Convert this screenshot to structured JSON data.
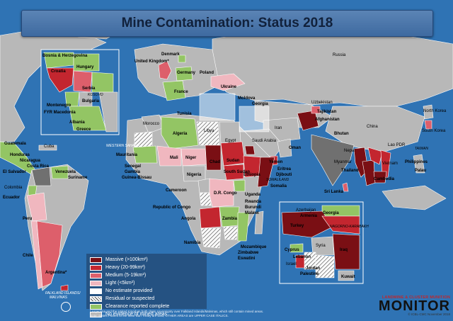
{
  "title": "Mine Contamination: Status 2018",
  "colors": {
    "ocean": "#2f73b4",
    "massive": "#7a0f14",
    "heavy": "#c3262f",
    "medium": "#dd5f6b",
    "light": "#f0b7bf",
    "no_estimate": "#ffffff",
    "residual": "hatch",
    "clearance_complete": "#93c564",
    "no_evidence": "#b8b8b8",
    "not_bound_gray": "#707070"
  },
  "legend": [
    {
      "label": "Massive (>100km²)",
      "color": "#7a0f14"
    },
    {
      "label": "Heavy (20-99km²)",
      "color": "#c3262f"
    },
    {
      "label": "Medium (5-19km²)",
      "color": "#dd5f6b"
    },
    {
      "label": "Light (<5km²)",
      "color": "#f0b7bf"
    },
    {
      "label": "No estimate provided",
      "color": "#ffffff"
    },
    {
      "label": "Residual or suspected",
      "color": "hatch"
    },
    {
      "label": "Clearance reported complete",
      "color": "#93c564"
    },
    {
      "label": "No evidence of mined areas",
      "color": "#b8b8b8"
    }
  ],
  "labels": {
    "russia": "Russia",
    "denmark": "Denmark",
    "united_kingdom": "United Kingdom*",
    "germany": "Germany",
    "poland": "Poland",
    "france": "France",
    "ukraine": "Ukraine",
    "moldova": "Moldova",
    "georgia_top": "Georgia",
    "uzbekistan": "Uzbekistan",
    "tajikistan": "Tajikistan",
    "afghanistan": "Afghanistan",
    "iran": "Iran",
    "north_korea": "North Korea",
    "south_korea": "South Korea",
    "china": "China",
    "bhutan": "Bhutan",
    "nepal": "Nepal",
    "lao_pdr": "Lao PDR",
    "taiwan": "TAIWAN",
    "philippines": "Philippines",
    "palau": "Palau",
    "myanmar": "Myanmar",
    "thailand": "Thailand",
    "vietnam": "Vietnam",
    "cambodia": "Cambodia",
    "sri_lanka": "Sri Lanka",
    "oman": "Oman",
    "saudi_arabia": "Saudi Arabia",
    "yemen": "Yemen",
    "eritrea": "Eritrea",
    "djibouti": "Djibouti",
    "somaliland": "SOMALILAND",
    "somalia": "Somalia",
    "ethiopia": "Ethiopia",
    "sudan": "Sudan",
    "south_sudan": "South Sudan",
    "egypt": "Egypt",
    "libya": "Libya",
    "tunisia": "Tunisia",
    "morocco": "Morocco",
    "algeria": "Algeria",
    "western_sahara": "WESTERN SAHARA",
    "mauritania": "Mauritania",
    "mali": "Mali",
    "niger": "Niger",
    "chad": "Chad",
    "nigeria": "Nigeria",
    "senegal": "Senegal",
    "gambia": "Gambia",
    "guinea_bissau": "Guinea-Bissau",
    "cameroon": "Cameroon",
    "republic_of_congo": "Republic of Congo",
    "dr_congo": "D.R. Congo",
    "uganda": "Uganda",
    "rwanda": "Rwanda",
    "burundi": "Burundi",
    "malawi": "Malawi",
    "angola": "Angola",
    "zambia": "Zambia",
    "namibia": "Namibia",
    "mozambique": "Mozambique",
    "zimbabwe": "Zimbabwe",
    "eswatini": "Eswatini",
    "cuba": "Cuba",
    "guatemala": "Guatemala",
    "honduras": "Honduras",
    "nicaragua": "Nicaragua",
    "costa_rica": "Costa Rica",
    "el_salvador": "El Salvador",
    "venezuela": "Venezuela",
    "suriname": "Suriname",
    "colombia": "Colombia",
    "ecuador": "Ecuador",
    "peru": "Peru",
    "chile": "Chile",
    "argentina": "Argentina*",
    "falkland": "FALKLAND ISLANDS/",
    "malvinas": "MALVINAS",
    "bosnia": "Bosnia & Herzegovina",
    "croatia": "Croatia",
    "hungary": "Hungary",
    "serbia": "Serbia",
    "kosovo": "KOSOVO",
    "bulgaria": "Bulgaria",
    "montenegro": "Montenegro",
    "fyr_macedonia": "FYR Macedonia",
    "albania": "Albania",
    "greece": "Greece",
    "azerbaijan": "Azerbaijan",
    "armenia": "Armenia",
    "georgia_inset": "Georgia",
    "turkey": "Turkey",
    "nagorno": "NAGORNO-KARABAKH",
    "cyprus": "Cyprus",
    "syria": "Syria",
    "lebanon": "Lebanon",
    "israel": "Israel",
    "jordan": "Jordan",
    "palestine": "Palestine",
    "iraq": "Iraq",
    "kuwait": "Kuwait"
  },
  "footnote_1": "* Argentina and the United Kingdom both claim sovereignty over Falkland Islands/Malvinas, which still contain mined areas.",
  "footnote_2": "Note: States Parties to the Mine Ban Treaty are bold, OTHER AREAS are UPPER CASE ITALICS.",
  "brand_top": "LANDMINE & CLUSTER MUNITION",
  "brand_name": "MONITOR",
  "brand_credit": "© ICBL-CMC November 2018"
}
